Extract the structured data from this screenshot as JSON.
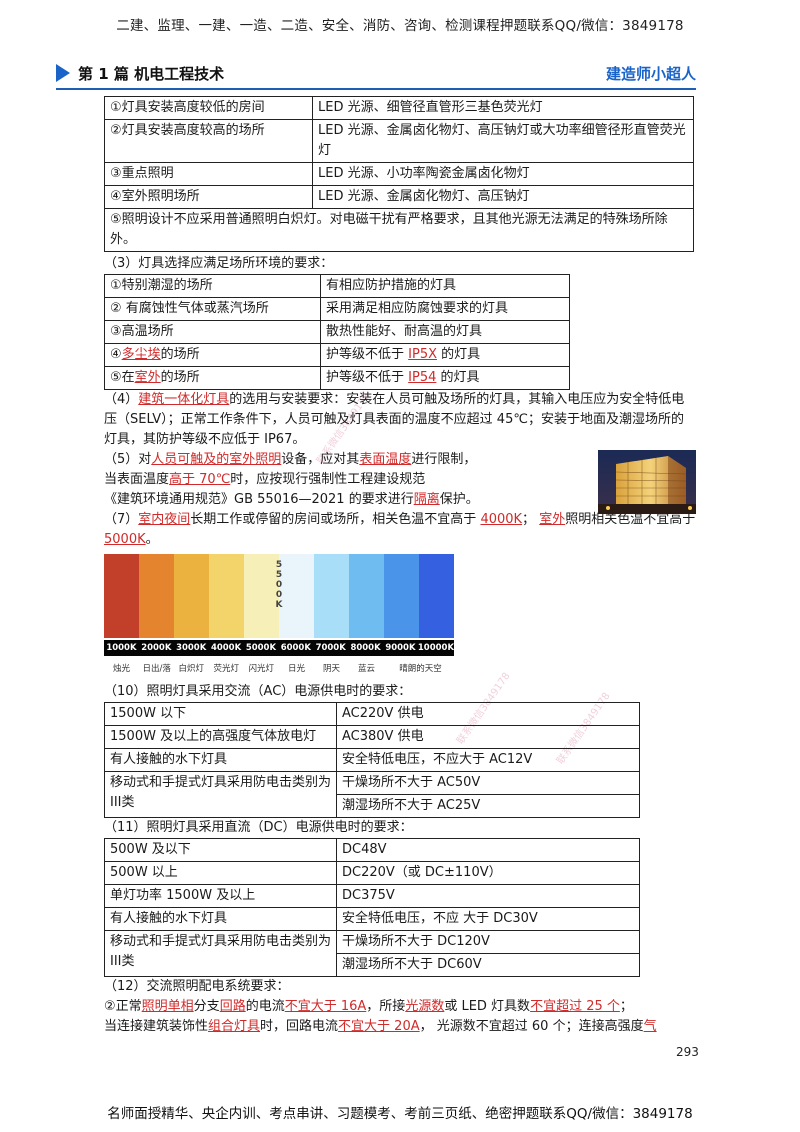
{
  "banner": "二建、监理、一建、一造、二造、安全、消防、咨询、检测课程押题联系QQ/微信：3849178",
  "header": {
    "part": "第 1 篇  机电工程技术",
    "author": "建造师小超人"
  },
  "table1": {
    "rows": [
      [
        "①灯具安装高度较低的房间",
        "LED 光源、细管径直管形三基色荧光灯"
      ],
      [
        "②灯具安装高度较高的场所",
        "LED 光源、金属卤化物灯、高压钠灯或大功率细管径形直管荧光灯"
      ],
      [
        "③重点照明",
        "LED 光源、小功率陶瓷金属卤化物灯"
      ],
      [
        "④室外照明场所",
        "LED 光源、金属卤化物灯、高压钠灯"
      ]
    ],
    "note": "⑤照明设计不应采用普通照明白炽灯。对电磁干扰有严格要求，且其他光源无法满足的特殊场所除外。"
  },
  "s3": {
    "label": "（3）灯具选择应满足场所环境的要求：",
    "rows": [
      {
        "a": "①特别潮湿的场所",
        "b": "有相应防护措施的灯具"
      },
      {
        "a": "② 有腐蚀性气体或蒸汽场所",
        "b": "采用满足相应防腐蚀要求的灯具"
      },
      {
        "a": "③高温场所",
        "b": "散热性能好、耐高温的灯具"
      },
      {
        "a1": "④",
        "a2": "多尘埃",
        "a3": "的场所",
        "b1": "护等级不低于 ",
        "b2": "IP5X",
        "b3": " 的灯具"
      },
      {
        "a1": "⑤在",
        "a2": "室外",
        "a3": "的场所",
        "b1": "护等级不低于 ",
        "b2": "IP54",
        "b3": " 的灯具"
      }
    ]
  },
  "s4": {
    "pre": "（4）",
    "red": "建筑一体化灯具",
    "text": "的选用与安装要求：安装在人员可触及场所的灯具，其输入电压应为安全特低电压（SELV）；正常工作条件下，人员可触及灯具表面的温度不应超过 45℃；安装于地面及潮湿场所的灯具，其防护等级不应低于 IP67。"
  },
  "s5": {
    "l1": [
      "（5）对",
      "人员可触及的室外照明",
      "设备，应对其",
      "表面温度",
      "进行限制，"
    ],
    "l2": [
      "当表面温度",
      "高于 70℃",
      "时，应按现行强制性工程建设规范"
    ],
    "l3": [
      "《建筑环境通用规范》GB 55016—2021 的要求进行",
      "隔离",
      "保护。"
    ]
  },
  "s7": {
    "parts": [
      "（7）",
      "室内夜间",
      "长期工作或停留的房间或场所，相关色温不宜高于 ",
      "4000K",
      "；  ",
      "室外",
      "照明相关色温不宜高于 ",
      "5000K",
      "。"
    ]
  },
  "ct": {
    "colors": [
      "#c2402a",
      "#e4842e",
      "#ebb240",
      "#f3d46a",
      "#f7efb8",
      "#e9f5fb",
      "#a8def7",
      "#6fbdf0",
      "#4a94ea",
      "#3560e0"
    ],
    "mid": "5500K",
    "labels": [
      "1000K",
      "2000K",
      "3000K",
      "4000K",
      "5000K",
      "6000K",
      "7000K",
      "8000K",
      "9000K",
      "10000K"
    ],
    "sources": [
      "烛光",
      "日出/落",
      "白炽灯",
      "荧光灯",
      "闪光灯",
      "日光",
      "阴天",
      "蓝云",
      "晴朗的天空"
    ]
  },
  "s10": {
    "label": "（10）照明灯具采用交流（AC）电源供电时的要求：",
    "rows": [
      [
        "1500W 以下",
        "AC220V 供电"
      ],
      [
        "1500W 及以上的高强度气体放电灯",
        "AC380V 供电"
      ],
      [
        "有人接触的水下灯具",
        "安全特低电压，不应大于 AC12V"
      ]
    ],
    "portable": "移动式和手提式灯具采用防电击类别为III类",
    "dry": "干燥场所不大于 AC50V",
    "wet": "潮湿场所不大于 AC25V"
  },
  "s11": {
    "label": "（11）照明灯具采用直流（DC）电源供电时的要求：",
    "rows": [
      [
        "500W 及以下",
        "DC48V"
      ],
      [
        "500W 以上",
        "DC220V（或 DC±110V）"
      ],
      [
        "单灯功率 1500W 及以上",
        "DC375V"
      ],
      [
        "有人接触的水下灯具",
        "安全特低电压，不应 大于 DC30V"
      ]
    ],
    "portable": "移动式和手提式灯具采用防电击类别为III类",
    "dry": "干燥场所不大于 DC120V",
    "wet": "潮湿场所不大于 DC60V"
  },
  "s12": {
    "label": "（12）交流照明配电系统要求：",
    "l1": [
      "②正常",
      "照明单相",
      "分支",
      "回路",
      "的电流",
      "不宜大于 16A",
      "，所接",
      "光源数",
      "或 LED 灯具数",
      "不宜超过 25 个",
      "；"
    ],
    "l2": [
      "当连接建筑装饰性",
      "组合灯具",
      "时，回路电流",
      "不宜大于 20A",
      "，  光源数不宜超过 60 个；连接高强度",
      "气"
    ]
  },
  "page_number": "293",
  "footer": "名师面授精华、央企内训、考点串讲、习题模考、考前三页纸、绝密押题联系QQ/微信：3849178",
  "watermark": "联系微信3849178"
}
